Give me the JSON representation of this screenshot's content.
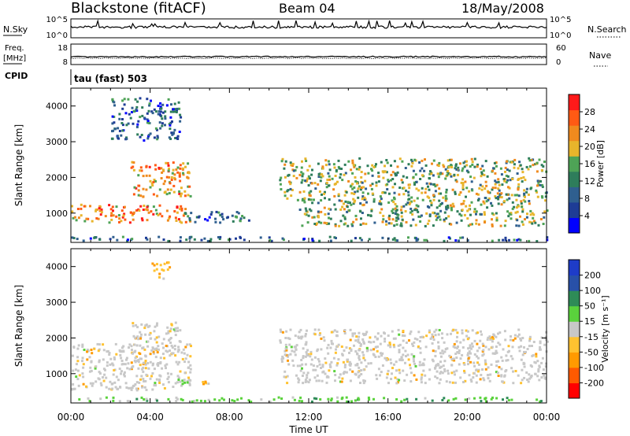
{
  "header": {
    "title": "Blackstone (fitACF)",
    "beam": "Beam 04",
    "date": "18/May/2008"
  },
  "noise_panel": {
    "left_label": "N.Sky",
    "right_label": "N.Search",
    "left_ticks": [
      "10^5",
      "10^0"
    ],
    "right_ticks": [
      "10^5",
      "10^0"
    ]
  },
  "freq_panel": {
    "left_label_1": "Freq.",
    "left_label_2": "[MHz]",
    "right_label": "Nave",
    "left_ticks": [
      "18",
      "8"
    ],
    "right_ticks": [
      "60",
      "0"
    ]
  },
  "cpid": {
    "label": "CPID",
    "text": "tau (fast) 503"
  },
  "colors": {
    "power_scale": [
      "#0000ff",
      "#1e3c96",
      "#2f5f8f",
      "#2e7d5b",
      "#4ea356",
      "#e8b52b",
      "#f08a1e",
      "#ff5a14",
      "#ff1a1a"
    ],
    "velocity_scale": [
      "#ff0000",
      "#ff5a00",
      "#ff9a00",
      "#ffc230",
      "#c8c8c8",
      "#5ad23c",
      "#2e8b57",
      "#2850a8",
      "#1e3cc8"
    ]
  },
  "chart_data": [
    {
      "type": "heatmap",
      "name": "power",
      "xlabel": "",
      "ylabel": "Slant Range [km]",
      "xlim": [
        0,
        24
      ],
      "ylim": [
        180,
        4500
      ],
      "x_ticks": [
        "00:00",
        "04:00",
        "08:00",
        "12:00",
        "16:00",
        "20:00",
        "00:00"
      ],
      "y_ticks": [
        1000,
        2000,
        3000,
        4000
      ],
      "colorbar": {
        "label": "Power [dB]",
        "ticks": [
          4,
          8,
          12,
          16,
          20,
          24,
          28
        ],
        "range": [
          0,
          32
        ]
      },
      "scatter_regions": [
        {
          "t": [
            0.0,
            6.0
          ],
          "range": [
            700,
            1200
          ],
          "intensity": "high"
        },
        {
          "t": [
            3.0,
            6.0
          ],
          "range": [
            1400,
            2400
          ],
          "intensity": "high"
        },
        {
          "t": [
            2.0,
            5.5
          ],
          "range": [
            3000,
            4200
          ],
          "intensity": "low"
        },
        {
          "t": [
            5.5,
            9.0
          ],
          "range": [
            700,
            1000
          ],
          "intensity": "low"
        },
        {
          "t": [
            10.5,
            24.0
          ],
          "range": [
            1300,
            2500
          ],
          "intensity": "medium"
        },
        {
          "t": [
            11.5,
            24.0
          ],
          "range": [
            600,
            1300
          ],
          "intensity": "medium"
        },
        {
          "t": [
            0.0,
            24.0
          ],
          "range": [
            180,
            300
          ],
          "intensity": "low"
        }
      ]
    },
    {
      "type": "heatmap",
      "name": "velocity",
      "xlabel": "Time UT",
      "ylabel": "Slant Range [km]",
      "xlim": [
        0,
        24
      ],
      "ylim": [
        180,
        4500
      ],
      "x_ticks": [
        "00:00",
        "04:00",
        "08:00",
        "12:00",
        "16:00",
        "20:00",
        "00:00"
      ],
      "y_ticks": [
        1000,
        2000,
        3000,
        4000
      ],
      "colorbar": {
        "label": "Velocity [m s⁻¹]",
        "ticks": [
          "200",
          "100",
          "50",
          "15",
          "-15",
          "-50",
          "-100",
          "-200"
        ]
      },
      "scatter_regions": [
        {
          "t": [
            0.0,
            6.0
          ],
          "range": [
            500,
            1800
          ],
          "dominant": "-15 to 15"
        },
        {
          "t": [
            3.0,
            5.5
          ],
          "range": [
            1400,
            2400
          ],
          "dominant": "-15 to 15"
        },
        {
          "t": [
            4.0,
            5.0
          ],
          "range": [
            3600,
            4100
          ],
          "dominant": "-50 to -15"
        },
        {
          "t": [
            5.0,
            6.0
          ],
          "range": [
            600,
            800
          ],
          "dominant": "15 to 50"
        },
        {
          "t": [
            6.5,
            7.5
          ],
          "range": [
            650,
            780
          ],
          "dominant": "-50 to -15"
        },
        {
          "t": [
            10.5,
            24.0
          ],
          "range": [
            700,
            2200
          ],
          "dominant": "-15 to 15"
        },
        {
          "t": [
            0.0,
            24.0
          ],
          "range": [
            180,
            300
          ],
          "dominant": "15 to 50"
        }
      ]
    }
  ]
}
